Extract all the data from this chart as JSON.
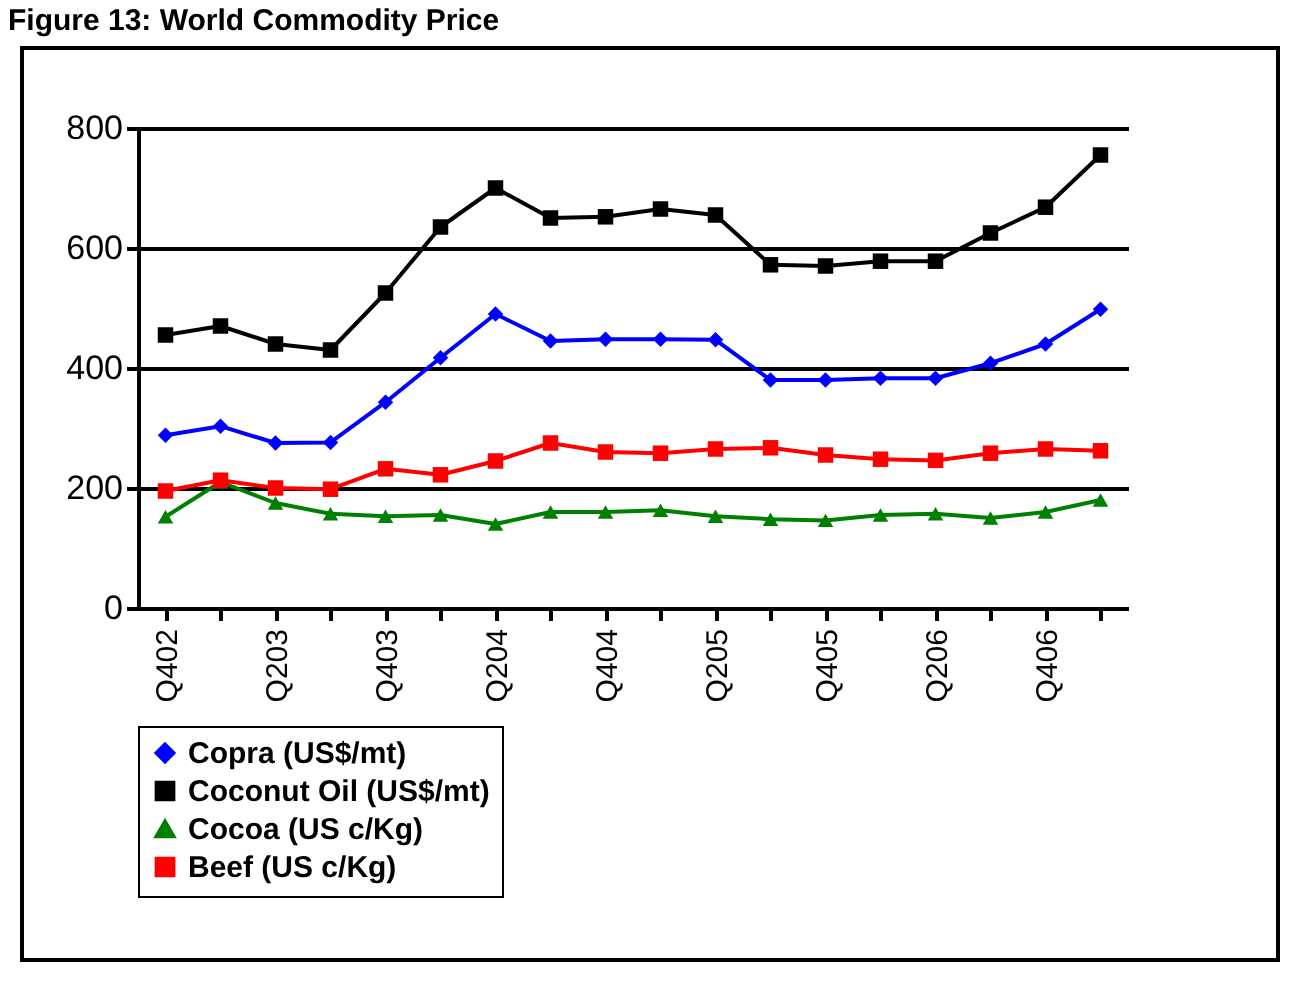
{
  "chart_data": {
    "type": "line",
    "title": "Figure 13: World Commodity Price",
    "categories": [
      "Q402",
      null,
      "Q203",
      null,
      "Q403",
      null,
      "Q204",
      null,
      "Q404",
      null,
      "Q205",
      null,
      "Q405",
      null,
      "Q206",
      null,
      "Q406",
      null
    ],
    "series": [
      {
        "name": "Copra (US$/mt)",
        "color": "#0000ff",
        "marker": "diamond",
        "values": [
          288,
          303,
          275,
          276,
          343,
          417,
          490,
          445,
          448,
          448,
          447,
          380,
          380,
          383,
          383,
          408,
          440,
          498
        ]
      },
      {
        "name": "Coconut Oil (US$/mt)",
        "color": "#000000",
        "marker": "square",
        "values": [
          455,
          470,
          440,
          430,
          525,
          635,
          700,
          650,
          652,
          665,
          655,
          572,
          570,
          578,
          578,
          625,
          668,
          755
        ]
      },
      {
        "name": "Cocoa (US c/Kg)",
        "color": "#008000",
        "marker": "triangle",
        "values": [
          152,
          210,
          175,
          157,
          153,
          155,
          140,
          160,
          160,
          163,
          153,
          148,
          146,
          155,
          157,
          150,
          160,
          180
        ]
      },
      {
        "name": "Beef (US c/Kg)",
        "color": "#ff0000",
        "marker": "square",
        "values": [
          195,
          213,
          200,
          198,
          232,
          222,
          245,
          275,
          260,
          258,
          265,
          267,
          255,
          248,
          246,
          258,
          265,
          262
        ]
      }
    ],
    "ylim": [
      0,
      800
    ],
    "yticks": [
      0,
      200,
      400,
      600,
      800
    ],
    "grid": "y",
    "legend": "bottom",
    "line_style": "solid"
  }
}
